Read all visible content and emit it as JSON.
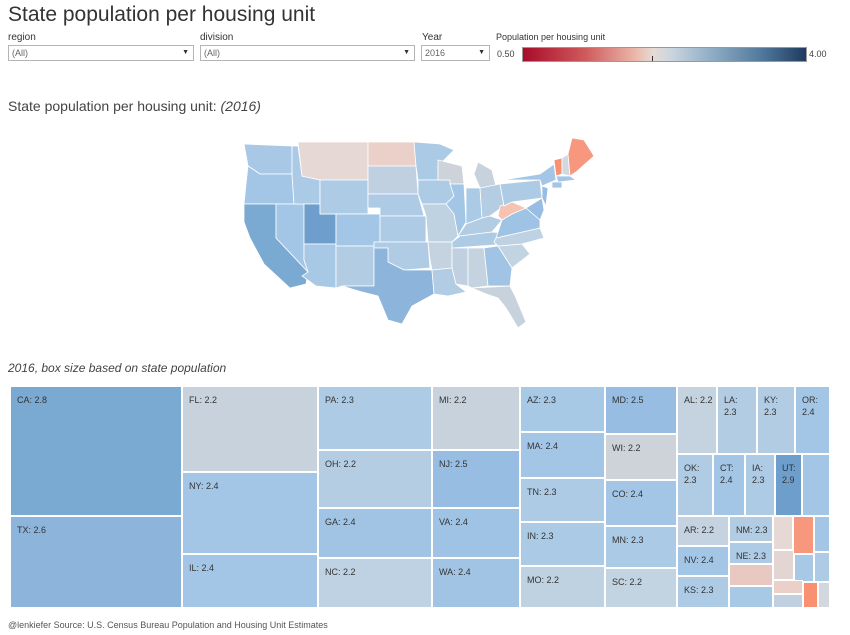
{
  "page_title": "State population per housing unit",
  "filters": {
    "region": {
      "label": "region",
      "value": "(All)"
    },
    "division": {
      "label": "division",
      "value": "(All)"
    },
    "year": {
      "label": "Year",
      "value": "2016"
    }
  },
  "legend": {
    "title": "Population per housing unit",
    "min": "0.50",
    "max": "4.00"
  },
  "map_heading": {
    "text": "State population per housing unit: ",
    "year": "(2016)"
  },
  "treemap_heading": "2016, box size based on state population",
  "footer": "@lenkiefer Source: U.S. Census Bureau Population and Housing Unit Estimates",
  "treemap": [
    {
      "label": "CA: 2.8",
      "color": "#7aa9d1"
    },
    {
      "label": "TX: 2.6",
      "color": "#8db4da"
    },
    {
      "label": "FL: 2.2",
      "color": "#c7d2dd"
    },
    {
      "label": "NY: 2.4",
      "color": "#a4c6e6"
    },
    {
      "label": "IL: 2.4",
      "color": "#a4c6e6"
    },
    {
      "label": "PA: 2.3",
      "color": "#aecbe5"
    },
    {
      "label": "OH: 2.2",
      "color": "#b4cde3"
    },
    {
      "label": "GA: 2.4",
      "color": "#a1c4e5"
    },
    {
      "label": "NC: 2.2",
      "color": "#bed2e3"
    },
    {
      "label": "MI: 2.2",
      "color": "#c8d2dc"
    },
    {
      "label": "NJ: 2.5",
      "color": "#97bde2"
    },
    {
      "label": "VA: 2.4",
      "color": "#9ec3e5"
    },
    {
      "label": "WA: 2.4",
      "color": "#a1c4e5"
    },
    {
      "label": "AZ: 2.3",
      "color": "#a8c9e6"
    },
    {
      "label": "MA: 2.4",
      "color": "#a4c6e6"
    },
    {
      "label": "TN: 2.3",
      "color": "#aecbe5"
    },
    {
      "label": "IN: 2.3",
      "color": "#aacae5"
    },
    {
      "label": "MO: 2.2",
      "color": "#bfd2e2"
    },
    {
      "label": "MD: 2.5",
      "color": "#97bde2"
    },
    {
      "label": "WI: 2.2",
      "color": "#cdd3d9"
    },
    {
      "label": "CO: 2.4",
      "color": "#a4c6e6"
    },
    {
      "label": "MN: 2.3",
      "color": "#abcae5"
    },
    {
      "label": "SC: 2.2",
      "color": "#c2d3e2"
    },
    {
      "label": "AL: 2.2",
      "color": "#c5d2df"
    },
    {
      "label": "LA:\n2.3",
      "color": "#b2cce4"
    },
    {
      "label": "KY:\n2.3",
      "color": "#b2cce4"
    },
    {
      "label": "OR:\n2.4",
      "color": "#a4c6e6"
    },
    {
      "label": "OK:\n2.3",
      "color": "#b0cbe4"
    },
    {
      "label": "CT:\n2.4",
      "color": "#a4c6e6"
    },
    {
      "label": "IA:\n2.3",
      "color": "#aecbe5"
    },
    {
      "label": "UT:\n2.9",
      "color": "#6e9ecb"
    },
    {
      "label": "",
      "color": "#a4c6e6"
    },
    {
      "label": "AR: 2.2",
      "color": "#c5d2df"
    },
    {
      "label": "NM: 2.3",
      "color": "#b2cce4"
    },
    {
      "label": "NV: 2.4",
      "color": "#a4c6e6"
    },
    {
      "label": "NE: 2.3",
      "color": "#aecbe5"
    },
    {
      "label": "KS: 2.3",
      "color": "#aecbe5"
    },
    {
      "label": "",
      "color": "#e8c9c2"
    },
    {
      "label": "",
      "color": "#a8c9e6"
    },
    {
      "label": "",
      "color": "#e6d8d5"
    },
    {
      "label": "",
      "color": "#f6977e"
    },
    {
      "label": "",
      "color": "#a4c6e6"
    },
    {
      "label": "",
      "color": "#e2d5d2"
    },
    {
      "label": "",
      "color": "#a8c9e6"
    },
    {
      "label": "",
      "color": "#aecbe5"
    },
    {
      "label": "",
      "color": "#ead0c9"
    },
    {
      "label": "",
      "color": "#c0d0e0"
    },
    {
      "label": "",
      "color": "#f99072"
    },
    {
      "label": "",
      "color": "#d2d8de"
    }
  ]
}
